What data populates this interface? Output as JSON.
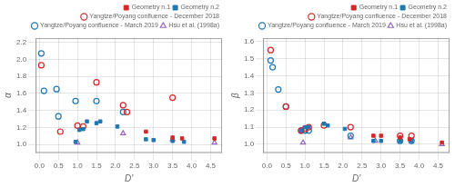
{
  "chart_data": [
    {
      "type": "scatter",
      "x_label": "D'",
      "y_label": "α",
      "series": [
        {
          "name": "Geometry n.1",
          "color": "#d62728",
          "marker": "square",
          "x": [
            2.8,
            3.5,
            3.75,
            4.6
          ],
          "values": [
            1.15,
            1.08,
            1.07,
            1.07
          ]
        },
        {
          "name": "Geometry n.2",
          "color": "#1f77b4",
          "marker": "square",
          "x": [
            0.95,
            1.05,
            1.15,
            1.25,
            1.5,
            1.6,
            2.05,
            2.8,
            3.0,
            3.5,
            3.8
          ],
          "values": [
            1.03,
            1.17,
            1.18,
            1.27,
            1.25,
            1.27,
            1.21,
            1.06,
            1.05,
            1.04,
            1.03
          ]
        },
        {
          "name": "Yangtze/Poyang confluence - December 2018",
          "color": "#d62728",
          "marker": "circle",
          "x": [
            0.05,
            0.55,
            1.0,
            1.15,
            1.5,
            2.2,
            2.3,
            3.5
          ],
          "values": [
            1.93,
            1.15,
            1.22,
            1.21,
            1.73,
            1.46,
            1.38,
            1.55
          ]
        },
        {
          "name": "Yangtze/Poyang confluence - March 2019",
          "color": "#1f77b4",
          "marker": "circle",
          "x": [
            0.05,
            0.12,
            0.45,
            0.5,
            0.95,
            1.5,
            2.2
          ],
          "values": [
            2.07,
            1.63,
            1.65,
            1.33,
            1.51,
            1.51,
            1.38
          ]
        },
        {
          "name": "Hsu et al. (1998a)",
          "color": "#9467bd",
          "marker": "triangle",
          "x": [
            1.0,
            2.2,
            3.5,
            4.6
          ],
          "values": [
            1.02,
            1.13,
            1.06,
            1.02
          ]
        }
      ],
      "xlim": [
        -0.1,
        4.8
      ],
      "xticks": [
        {
          "value": 0.0,
          "label": "0.0"
        },
        0.5,
        {
          "value": 1.0,
          "label": "1.0"
        },
        1.5,
        {
          "value": 2.0,
          "label": "2.0"
        },
        2.5,
        {
          "value": 3.0,
          "label": "3.0"
        },
        3.5,
        {
          "value": 4.0,
          "label": "4.0"
        },
        4.5
      ],
      "ylim": [
        0.9,
        2.25
      ],
      "yticks": [
        {
          "value": 1.0,
          "label": "1.0"
        },
        1.2,
        1.4,
        1.6,
        1.8,
        {
          "value": 2.0,
          "label": "2.0"
        },
        2.2
      ],
      "grid": true,
      "legend": "upper right"
    },
    {
      "type": "scatter",
      "x_label": "D'",
      "y_label": "β",
      "series": [
        {
          "name": "Geometry n.1",
          "color": "#d62728",
          "marker": "square",
          "x": [
            2.8,
            3.0,
            3.5,
            3.75,
            4.6
          ],
          "values": [
            1.05,
            1.05,
            1.04,
            1.03,
            1.01
          ]
        },
        {
          "name": "Geometry n.2",
          "color": "#1f77b4",
          "marker": "square",
          "x": [
            0.9,
            1.0,
            1.1,
            1.5,
            1.6,
            2.05,
            2.8,
            3.0,
            3.5,
            3.8
          ],
          "values": [
            1.08,
            1.1,
            1.1,
            1.12,
            1.11,
            1.09,
            1.02,
            1.02,
            1.02,
            1.02
          ]
        },
        {
          "name": "Yangtze/Poyang confluence - December 2018",
          "color": "#d62728",
          "marker": "circle",
          "x": [
            0.1,
            0.5,
            0.9,
            1.0,
            1.1,
            1.5,
            2.2,
            3.5,
            3.8
          ],
          "values": [
            1.55,
            1.22,
            1.08,
            1.09,
            1.1,
            1.11,
            1.1,
            1.05,
            1.05
          ]
        },
        {
          "name": "Yangtze/Poyang confluence - March 2019",
          "color": "#1f77b4",
          "marker": "circle",
          "x": [
            0.1,
            0.15,
            0.3,
            0.5,
            0.9,
            1.0,
            1.1,
            2.2,
            3.5,
            3.8
          ],
          "values": [
            1.49,
            1.45,
            1.32,
            1.22,
            1.08,
            1.08,
            1.08,
            1.05,
            1.02,
            1.02
          ]
        },
        {
          "name": "Hsu et al. (1998a)",
          "color": "#9467bd",
          "marker": "triangle",
          "x": [
            0.95,
            2.2,
            2.85,
            4.6
          ],
          "values": [
            1.01,
            1.04,
            1.02,
            1.0
          ]
        }
      ],
      "xlim": [
        -0.1,
        4.8
      ],
      "xticks": [
        {
          "value": 0.0,
          "label": "0.0"
        },
        0.5,
        {
          "value": 1.0,
          "label": "1.0"
        },
        1.5,
        {
          "value": 2.0,
          "label": "2.0"
        },
        2.5,
        {
          "value": 3.0,
          "label": "3.0"
        },
        3.5,
        {
          "value": 4.0,
          "label": "4.0"
        },
        4.5
      ],
      "ylim": [
        0.95,
        1.62
      ],
      "yticks": [
        {
          "value": 1.0,
          "label": "1.0"
        },
        1.1,
        1.2,
        1.3,
        1.4,
        1.5,
        1.6
      ],
      "grid": true,
      "legend": "upper right"
    }
  ]
}
